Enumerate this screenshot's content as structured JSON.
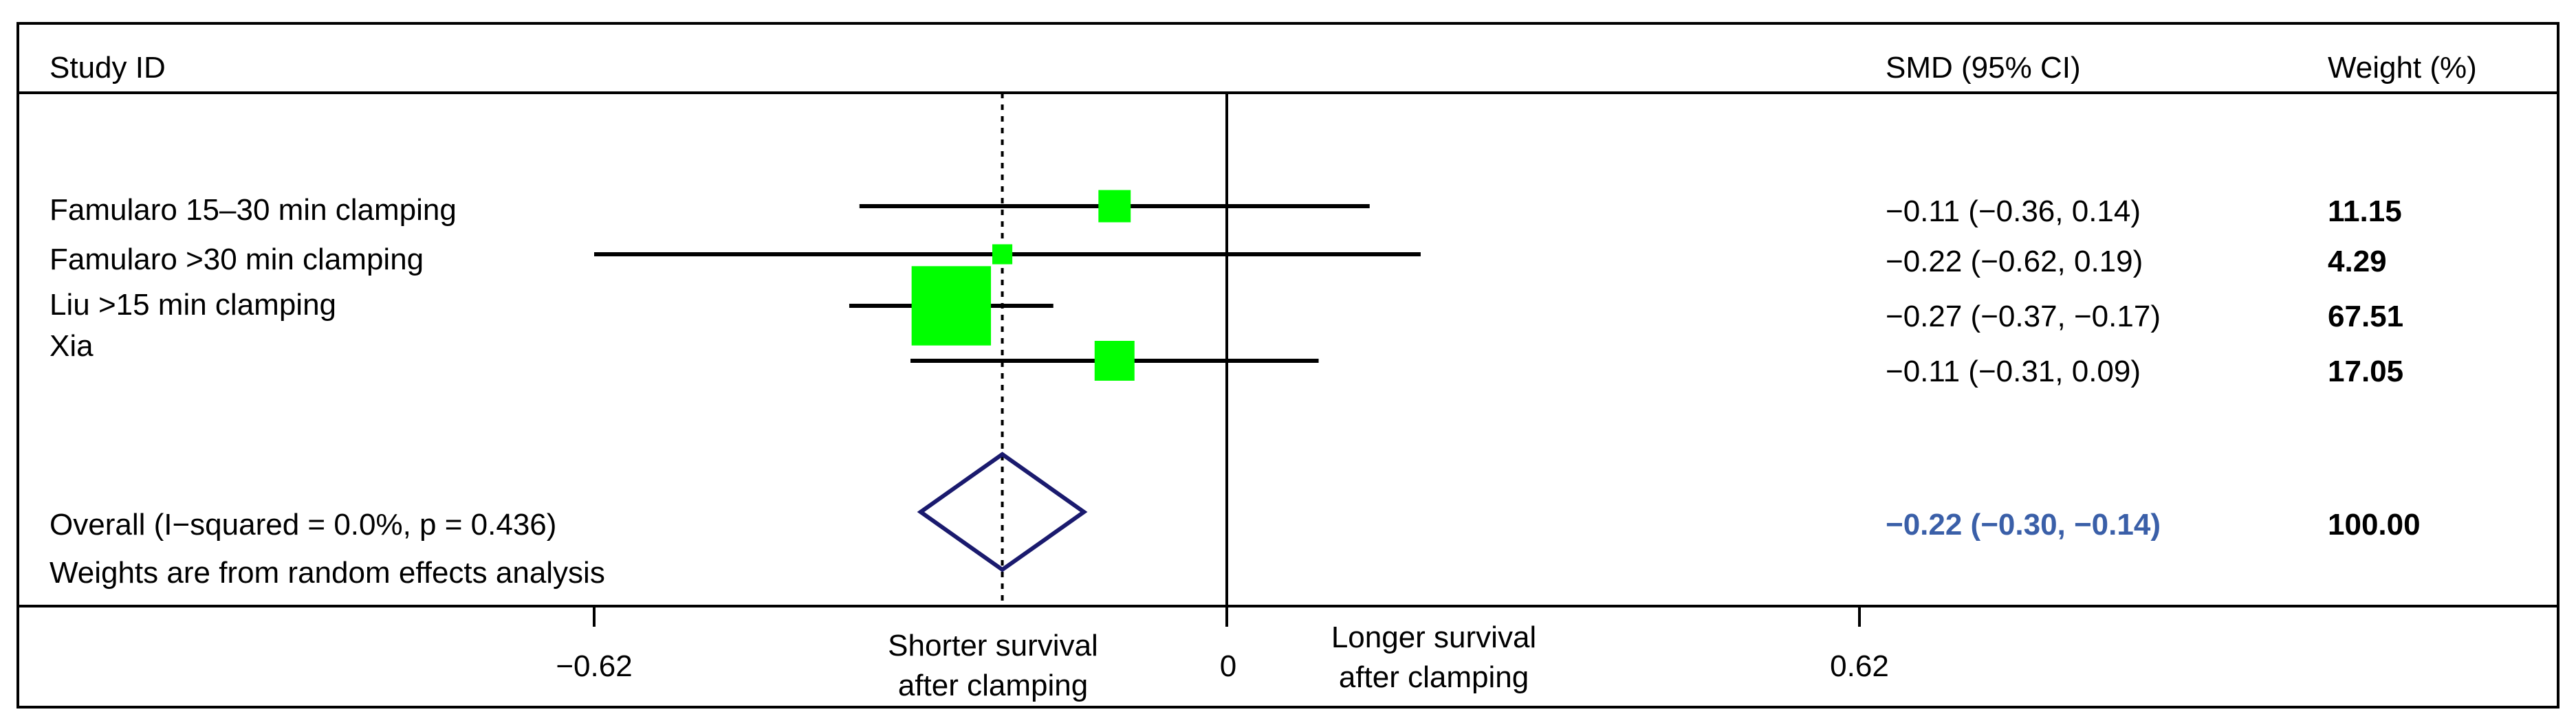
{
  "chart_data": {
    "type": "forest",
    "headers": {
      "study": "Study ID",
      "effect": "SMD (95% CI)",
      "weight": "Weight (%)"
    },
    "studies": [
      {
        "name": "Famularo 15–30 min clamping",
        "smd": -0.11,
        "lower": -0.36,
        "upper": 0.14,
        "ci_text": "−0.11 (−0.36, 0.14)",
        "weight": 11.15,
        "weight_text": "11.15"
      },
      {
        "name": "Famularo >30 min clamping",
        "smd": -0.22,
        "lower": -0.62,
        "upper": 0.19,
        "ci_text": "−0.22 (−0.62, 0.19)",
        "weight": 4.29,
        "weight_text": "4.29"
      },
      {
        "name": "Liu >15 min clamping",
        "smd": -0.27,
        "lower": -0.37,
        "upper": -0.17,
        "ci_text": "−0.27 (−0.37, −0.17)",
        "weight": 67.51,
        "weight_text": "67.51"
      },
      {
        "name": "Xia",
        "smd": -0.11,
        "lower": -0.31,
        "upper": 0.09,
        "ci_text": "−0.11 (−0.31, 0.09)",
        "weight": 17.05,
        "weight_text": "17.05"
      }
    ],
    "overall": {
      "label": "Overall  (I−squared = 0.0%, p = 0.436)",
      "smd": -0.22,
      "lower": -0.3,
      "upper": -0.14,
      "ci_text": "−0.22 (−0.30, −0.14)",
      "weight_text": "100.00"
    },
    "note": "Weights are from random effects analysis",
    "x_ticks": [
      {
        "value": -0.62,
        "label": "−0.62"
      },
      {
        "value": 0,
        "label": "0"
      },
      {
        "value": 0.62,
        "label": "0.62"
      }
    ],
    "xlim": [
      -0.62,
      0.62
    ],
    "left_direction_label": [
      "Shorter survival",
      "after clamping"
    ],
    "right_direction_label": [
      "Longer survival",
      "after clamping"
    ],
    "colors": {
      "marker": "#00ff00",
      "diamond": "#1a1a6e",
      "overall_text": "#3a5fa8",
      "line": "#000000"
    }
  }
}
